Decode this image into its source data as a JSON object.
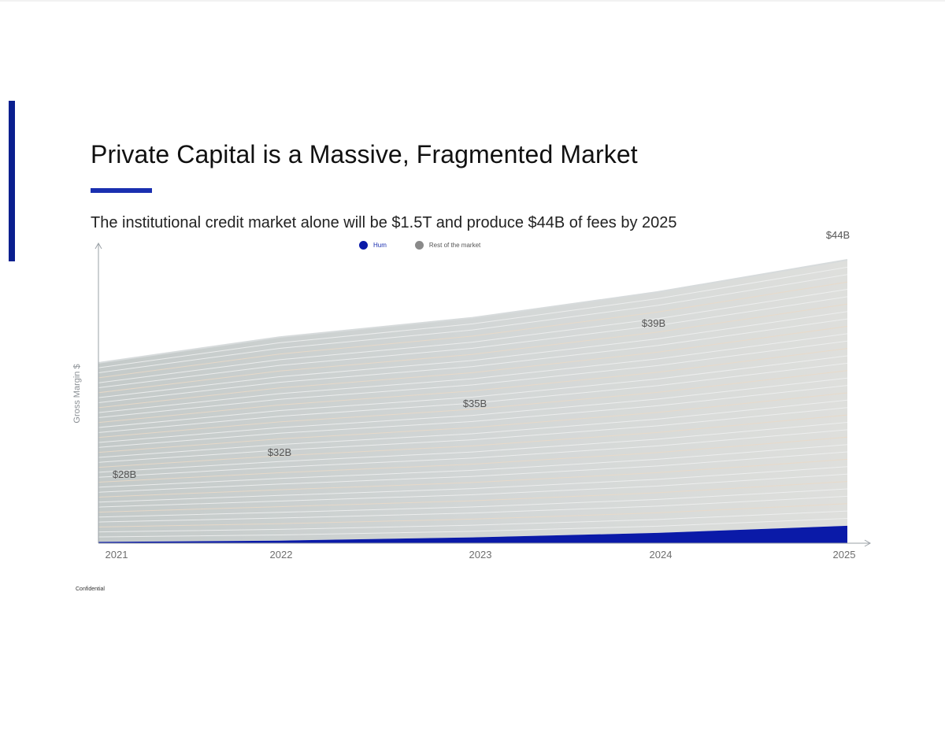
{
  "slide": {
    "title": "Private Capital is a Massive, Fragmented Market",
    "subtitle": "The institutional credit market alone will be $1.5T and produce $44B of fees by 2025",
    "footer": "Confidential",
    "accent_color": "#0a1f8f"
  },
  "chart_data": {
    "type": "area",
    "x": [
      "2021",
      "2022",
      "2023",
      "2024",
      "2025"
    ],
    "ylabel": "Gross Margin $",
    "xlabel": "",
    "ylim": [
      0,
      44
    ],
    "grid": false,
    "legend_position": "top-center",
    "series": [
      {
        "name": "Hum",
        "color": "#0a1aa8",
        "values": [
          0.2,
          0.4,
          0.9,
          1.6,
          2.7
        ]
      },
      {
        "name": "Rest of the market",
        "color": "#b7bcbd",
        "values": [
          27.8,
          31.6,
          34.1,
          37.4,
          41.3
        ]
      }
    ],
    "totals": [
      28,
      32,
      35,
      39,
      44
    ],
    "data_labels": [
      "$28B",
      "$32B",
      "$35B",
      "$39B",
      "$44B"
    ]
  }
}
